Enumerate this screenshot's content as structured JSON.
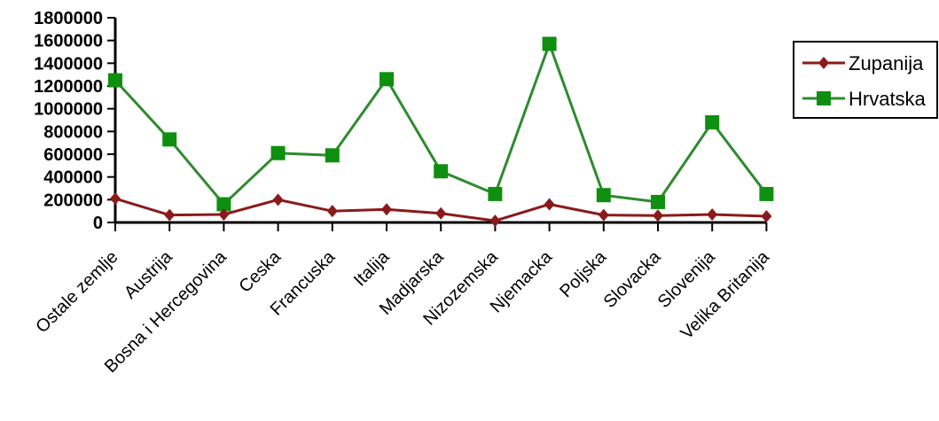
{
  "chart_data": {
    "type": "line",
    "title": "",
    "xlabel": "",
    "ylabel": "",
    "ylim": [
      0,
      1800000
    ],
    "yticks": [
      0,
      200000,
      400000,
      600000,
      800000,
      1000000,
      1200000,
      1400000,
      1600000,
      1800000
    ],
    "grid": false,
    "legend_position": "right",
    "categories": [
      "Ostale zemlje",
      "Austrija",
      "Bosna i Hercegovina",
      "Ceska",
      "Francuska",
      "Italija",
      "Madjarska",
      "Nizozemska",
      "Njemacka",
      "Poljska",
      "Slovacka",
      "Slovenija",
      "Velika Britanija"
    ],
    "series": [
      {
        "name": "Zupanija",
        "color": "#8b1a1a",
        "marker": "diamond",
        "values": [
          210000,
          65000,
          70000,
          200000,
          100000,
          115000,
          80000,
          15000,
          160000,
          65000,
          60000,
          70000,
          55000
        ]
      },
      {
        "name": "Hrvatska",
        "color": "#2e8b2e",
        "marker_color": "#0f8f0f",
        "marker": "square",
        "values": [
          1250000,
          730000,
          160000,
          610000,
          590000,
          1260000,
          450000,
          250000,
          1570000,
          240000,
          180000,
          880000,
          250000
        ]
      }
    ]
  }
}
